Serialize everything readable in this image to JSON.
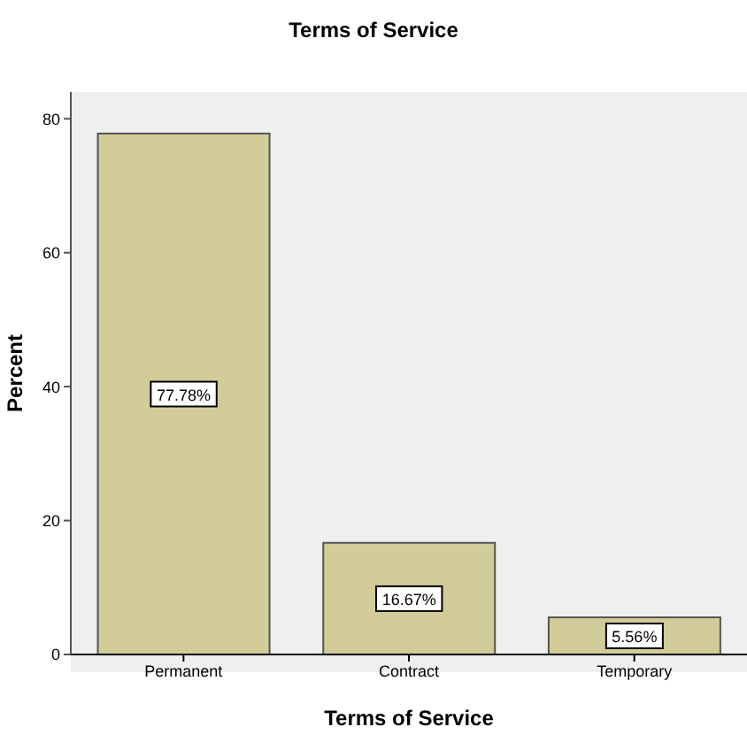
{
  "chart_data": {
    "type": "bar",
    "title": "Terms of Service",
    "xlabel": "Terms of Service",
    "ylabel": "Percent",
    "categories": [
      "Permanent",
      "Contract",
      "Temporary"
    ],
    "values": [
      77.78,
      16.67,
      5.56
    ],
    "value_labels": [
      "77.78%",
      "16.67%",
      "5.56%"
    ],
    "color": "#d2cc98",
    "ylim": [
      0,
      84
    ],
    "yticks": [
      0,
      20,
      40,
      60,
      80
    ],
    "grid": false,
    "legend": false
  }
}
